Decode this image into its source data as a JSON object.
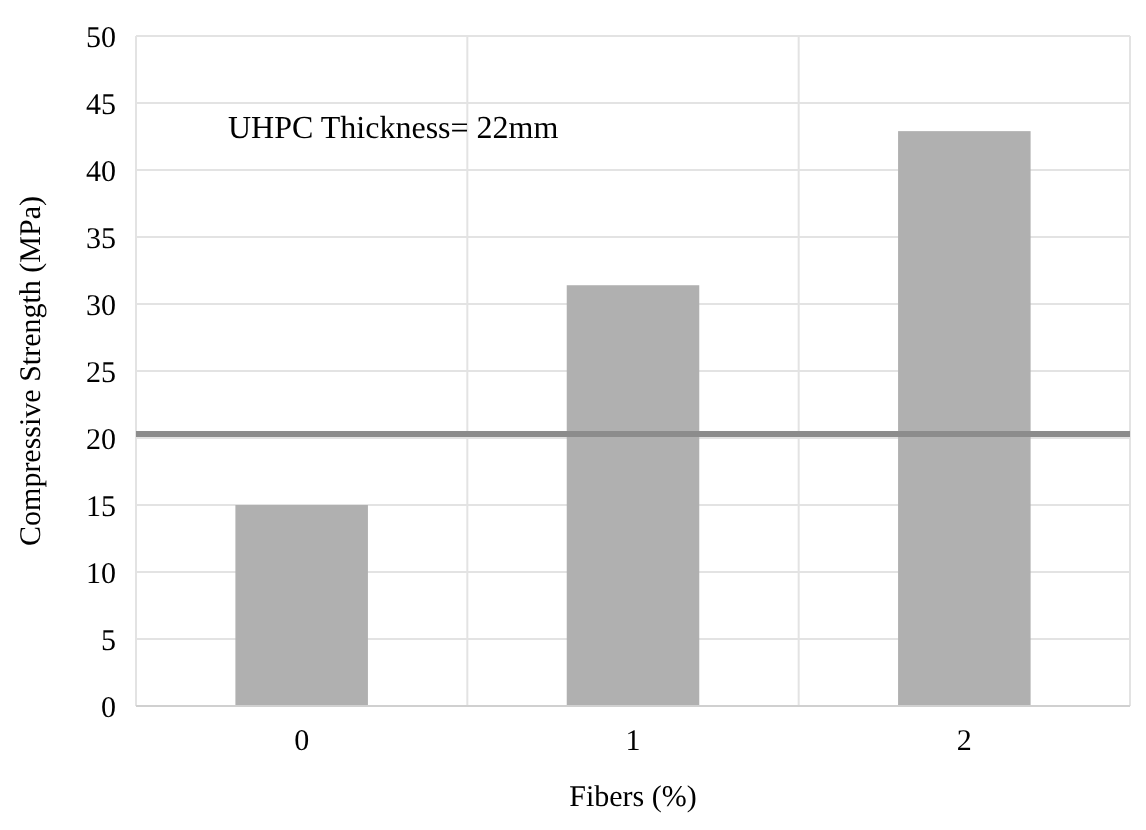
{
  "chart_data": {
    "type": "bar",
    "xlabel": "Fibers (%)",
    "ylabel": "Compressive Strength (MPa)",
    "categories": [
      "0",
      "1",
      "2"
    ],
    "values": [
      15.0,
      31.4,
      42.9
    ],
    "color": "#b0b0b0",
    "ylim": [
      0,
      50
    ],
    "yticks": [
      0,
      5,
      10,
      15,
      20,
      25,
      30,
      35,
      40,
      45,
      50
    ],
    "grid": true,
    "ref_lines": [
      {
        "axis": "y",
        "value": 20.3,
        "color": "#8c8c8c"
      }
    ],
    "annotations": [
      "UHPC Thickness= 22mm"
    ]
  }
}
